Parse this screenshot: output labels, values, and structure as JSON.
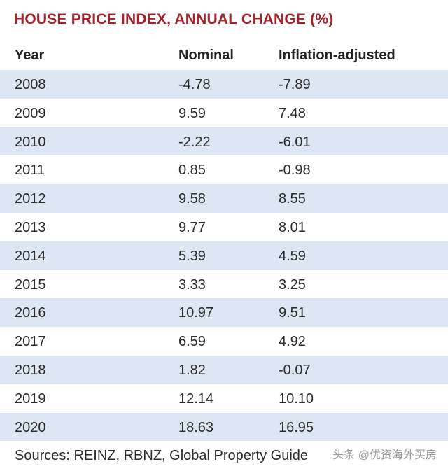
{
  "chart_data": {
    "type": "table",
    "title": "HOUSE PRICE INDEX, ANNUAL CHANGE (%)",
    "columns": [
      "Year",
      "Nominal",
      "Inflation-adjusted"
    ],
    "rows": [
      [
        "2008",
        "-4.78",
        "-7.89"
      ],
      [
        "2009",
        "9.59",
        "7.48"
      ],
      [
        "2010",
        "-2.22",
        "-6.01"
      ],
      [
        "2011",
        "0.85",
        "-0.98"
      ],
      [
        "2012",
        "9.58",
        "8.55"
      ],
      [
        "2013",
        "9.77",
        "8.01"
      ],
      [
        "2014",
        "5.39",
        "4.59"
      ],
      [
        "2015",
        "3.33",
        "3.25"
      ],
      [
        "2016",
        "10.97",
        "9.51"
      ],
      [
        "2017",
        "6.59",
        "4.92"
      ],
      [
        "2018",
        "1.82",
        "-0.07"
      ],
      [
        "2019",
        "12.14",
        "10.10"
      ],
      [
        "2020",
        "18.63",
        "16.95"
      ]
    ],
    "source": "Sources: REINZ, RBNZ, Global Property Guide"
  },
  "watermark": "头条 @优资海外买房",
  "colors": {
    "title": "#a3232a",
    "stripe": "#dde6f3",
    "text": "#2a2a2a"
  }
}
